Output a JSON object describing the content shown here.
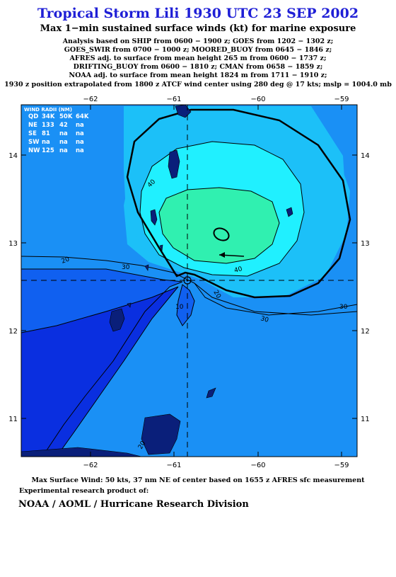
{
  "title": "Tropical Storm Lili 1930 UTC 23 SEP 2002",
  "subtitle": "Max 1−min sustained surface winds (kt) for marine exposure",
  "analysis_lines": [
    "Analysis based on  SHIP from 0600 − 1900 z;  GOES from 1202 − 1302 z;",
    "GOES_SWIR from 0700 − 1000 z;  MOORED_BUOY from 0645 − 1846 z;",
    "AFRES adj. to surface from mean height 265 m from 0600 − 1737 z;",
    "DRIFTING_BUOY from 0600 − 1810 z;  CMAN from 0658 − 1859 z;",
    "NOAA adj. to surface from mean height 1824 m from 1711 − 1910 z;",
    "1930 z position extrapolated from 1800 z ATCF wind center using 280 deg @ 17 kts; mslp = 1004.0 mb"
  ],
  "wind_radii": {
    "title": "WIND RADII (NM)",
    "header": [
      "QD",
      "34K",
      "50K",
      "64K"
    ],
    "rows": [
      [
        "NE",
        "133",
        "42",
        "na"
      ],
      [
        "SE",
        "81",
        "na",
        "na"
      ],
      [
        "SW",
        "na",
        "na",
        "na"
      ],
      [
        "NW",
        "125",
        "na",
        "na"
      ]
    ]
  },
  "axes": {
    "lon_ticks": [
      "−62",
      "−61",
      "−60",
      "−59"
    ],
    "lat_ticks": [
      "14",
      "13",
      "12",
      "11"
    ],
    "lon_range": [
      -62.8,
      -58.8
    ],
    "lat_range": [
      10.6,
      14.6
    ]
  },
  "contour_labels": [
    "40",
    "30",
    "20",
    "40",
    "20",
    "10",
    "30",
    "30",
    "20"
  ],
  "storm_center": {
    "lon": -60.83,
    "lat": 12.6
  },
  "max_wind_note": "Max Surface Wind: 50 kts, 37 nm NE of center based on 1655 z AFRES sfc measurement",
  "experimental_note": "Experimental research product of:",
  "organization": "NOAA / AOML / Hurricane Research Division",
  "colors": {
    "title": "#1f1fd6",
    "band_10": "#0a2fe0",
    "band_20": "#1060f0",
    "band_30": "#1a90f5",
    "band_40": "#1cc0f8",
    "band_50": "#20f0ff",
    "band_core": "#30f0b0"
  }
}
